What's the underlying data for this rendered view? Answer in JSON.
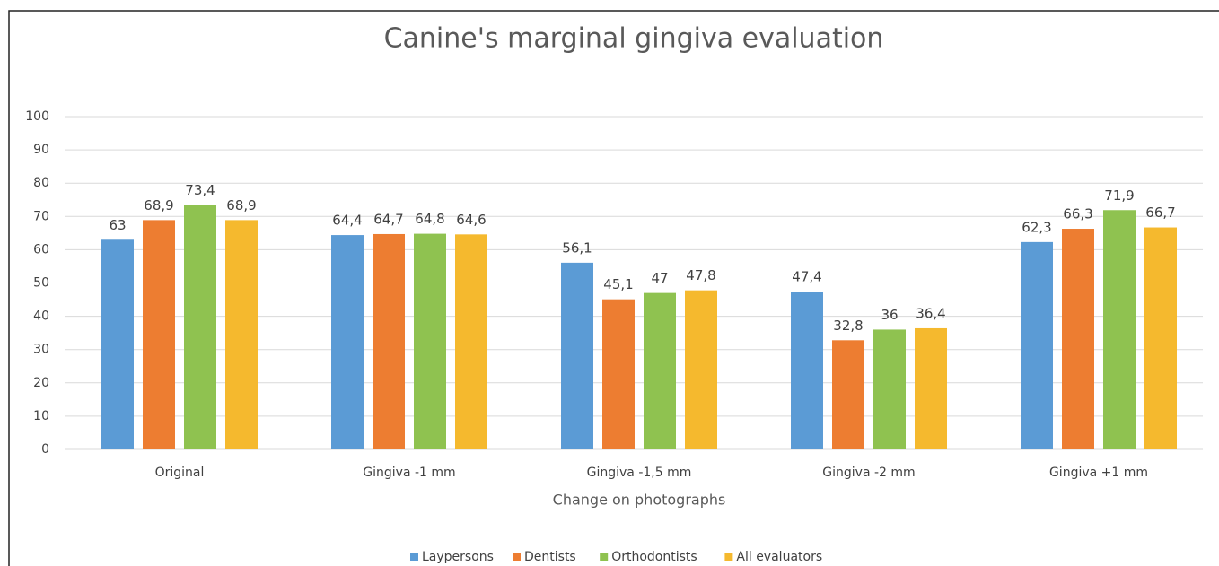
{
  "chart_data": {
    "type": "bar",
    "title": "Canine's marginal gingiva evaluation",
    "x_label": "Change on photographs",
    "categories": [
      "Original",
      "Gingiva -1 mm",
      "Gingiva -1,5 mm",
      "Gingiva -2 mm",
      "Gingiva +1 mm"
    ],
    "series": [
      {
        "name": "Laypersons",
        "color": "#5b9bd5",
        "values": [
          63,
          64.4,
          56.1,
          47.4,
          62.3
        ],
        "value_labels": [
          "63",
          "64,4",
          "56,1",
          "47,4",
          "62,3"
        ]
      },
      {
        "name": "Dentists",
        "color": "#ed7d31",
        "values": [
          68.9,
          64.7,
          45.1,
          32.8,
          66.3
        ],
        "value_labels": [
          "68,9",
          "64,7",
          "45,1",
          "32,8",
          "66,3"
        ]
      },
      {
        "name": "Orthodontists",
        "color": "#8fc250",
        "values": [
          73.4,
          64.8,
          47,
          36,
          71.9
        ],
        "value_labels": [
          "73,4",
          "64,8",
          "47",
          "36",
          "71,9"
        ]
      },
      {
        "name": "All evaluators",
        "color": "#f5b92e",
        "values": [
          68.9,
          64.6,
          47.8,
          36.4,
          66.7
        ],
        "value_labels": [
          "68,9",
          "64,6",
          "47,8",
          "36,4",
          "66,7"
        ]
      }
    ],
    "ylim": [
      0,
      100
    ],
    "yticks": [
      0,
      10,
      20,
      30,
      40,
      50,
      60,
      70,
      80,
      90,
      100
    ],
    "grid": true,
    "legend": "bottom"
  }
}
